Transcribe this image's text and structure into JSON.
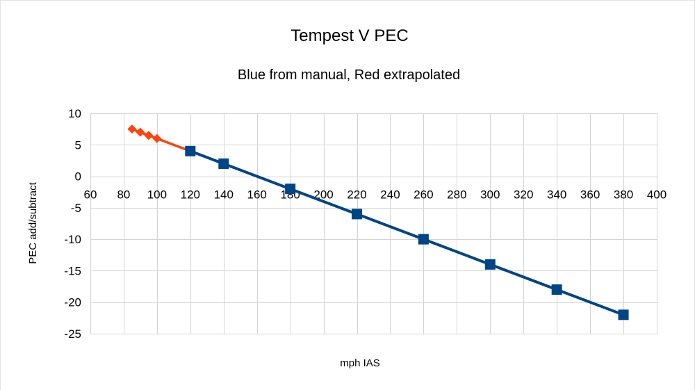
{
  "chart_data": {
    "type": "line",
    "title": "Tempest V PEC",
    "subtitle": "Blue from manual, Red extrapolated",
    "xlabel": "mph IAS",
    "ylabel": "PEC add/subtract",
    "xlim": [
      60,
      400
    ],
    "ylim": [
      -25,
      10
    ],
    "x_ticks": [
      60,
      80,
      100,
      120,
      140,
      160,
      180,
      200,
      220,
      240,
      260,
      280,
      300,
      320,
      340,
      360,
      380,
      400
    ],
    "y_ticks": [
      10,
      5,
      0,
      -5,
      -10,
      -15,
      -20,
      -25
    ],
    "grid": true,
    "legend": "none",
    "series": [
      {
        "name": "Extrapolated",
        "color": "#ff420e",
        "marker": "diamond",
        "x": [
          85,
          90,
          95,
          100,
          120
        ],
        "y": [
          7.5,
          7,
          6.5,
          6,
          4
        ]
      },
      {
        "name": "From manual",
        "color": "#004586",
        "marker": "square",
        "x": [
          120,
          140,
          180,
          220,
          260,
          300,
          340,
          380
        ],
        "y": [
          4,
          2,
          -2,
          -6,
          -10,
          -14,
          -18,
          -22
        ]
      }
    ]
  }
}
